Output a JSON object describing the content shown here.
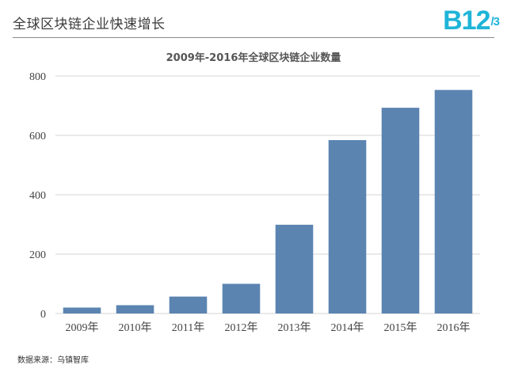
{
  "header": {
    "title": "全球区块链企业快速增长",
    "logo_text": "B12",
    "logo_suffix": "/3"
  },
  "footer": {
    "source": "数据来源：乌镇智库"
  },
  "colors": {
    "bar": "#5b84b1",
    "grid": "#d4d4d4",
    "logo": "#1fb4d8"
  },
  "chart_data": {
    "type": "bar",
    "title": "2009年-2016年全球区块链企业数量",
    "xlabel": "",
    "ylabel": "",
    "categories": [
      "2009年",
      "2010年",
      "2011年",
      "2012年",
      "2013年",
      "2014年",
      "2015年",
      "2016年"
    ],
    "values": [
      20,
      28,
      57,
      100,
      299,
      584,
      693,
      753
    ],
    "ylim": [
      0,
      800
    ],
    "yticks": [
      0,
      200,
      400,
      600,
      800
    ],
    "grid": true,
    "legend": "none"
  }
}
